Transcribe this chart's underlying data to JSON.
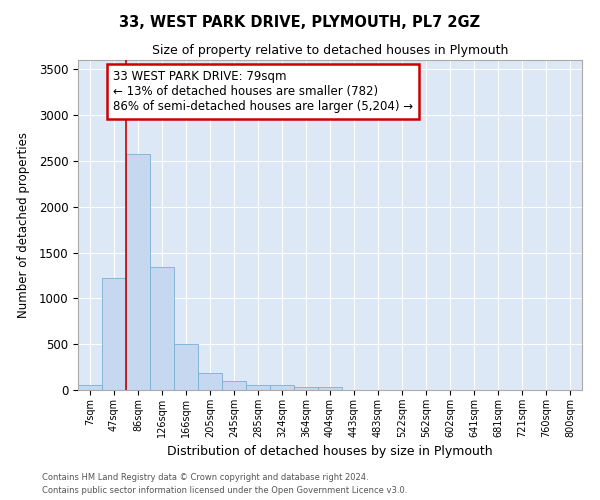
{
  "title": "33, WEST PARK DRIVE, PLYMOUTH, PL7 2GZ",
  "subtitle": "Size of property relative to detached houses in Plymouth",
  "xlabel": "Distribution of detached houses by size in Plymouth",
  "ylabel": "Number of detached properties",
  "bin_labels": [
    "7sqm",
    "47sqm",
    "86sqm",
    "126sqm",
    "166sqm",
    "205sqm",
    "245sqm",
    "285sqm",
    "324sqm",
    "364sqm",
    "404sqm",
    "443sqm",
    "483sqm",
    "522sqm",
    "562sqm",
    "602sqm",
    "641sqm",
    "681sqm",
    "721sqm",
    "760sqm",
    "800sqm"
  ],
  "bar_values": [
    50,
    1220,
    2580,
    1340,
    500,
    190,
    100,
    50,
    50,
    30,
    30,
    0,
    0,
    0,
    0,
    0,
    0,
    0,
    0,
    0,
    0
  ],
  "bar_color": "#c5d8f0",
  "bar_edge_color": "#7bafd4",
  "background_color": "#dce8f5",
  "grid_color": "#ffffff",
  "red_line_x": 2.0,
  "annotation_text": "33 WEST PARK DRIVE: 79sqm\n← 13% of detached houses are smaller (782)\n86% of semi-detached houses are larger (5,204) →",
  "annotation_box_color": "#cc0000",
  "ylim": [
    0,
    3600
  ],
  "yticks": [
    0,
    500,
    1000,
    1500,
    2000,
    2500,
    3000,
    3500
  ],
  "footer_line1": "Contains HM Land Registry data © Crown copyright and database right 2024.",
  "footer_line2": "Contains public sector information licensed under the Open Government Licence v3.0."
}
